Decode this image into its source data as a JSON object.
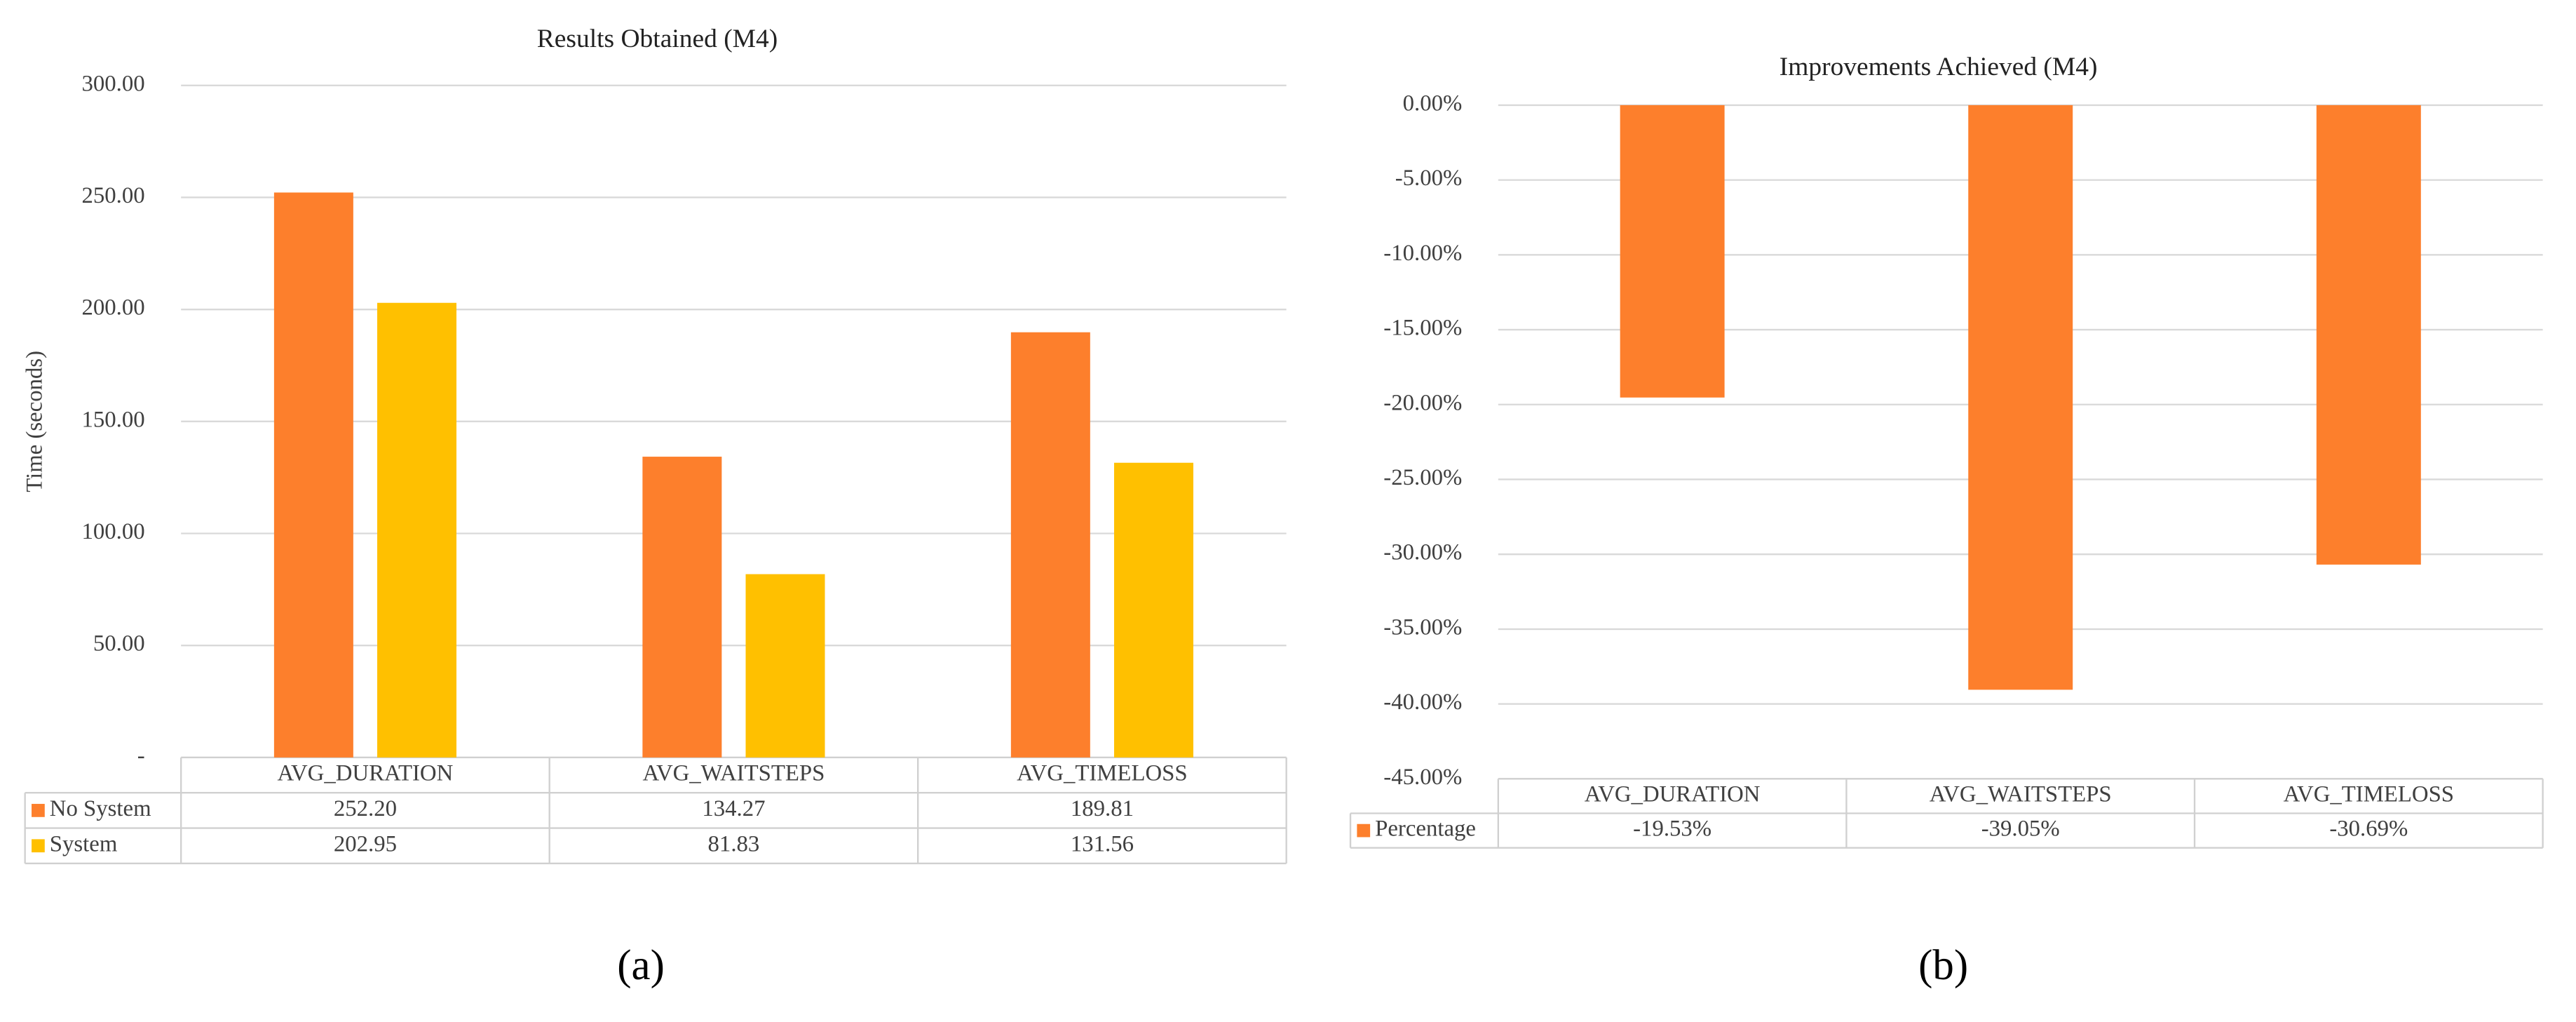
{
  "chart_data": [
    {
      "type": "bar",
      "title": "Results Obtained (M4)",
      "y_label": "Time (seconds)",
      "caption": "(a)",
      "categories": [
        "AVG_DURATION",
        "AVG_WAITSTEPS",
        "AVG_TIMELOSS"
      ],
      "series": [
        {
          "name": "No System",
          "color": "#fd7f2c",
          "values": [
            252.2,
            134.27,
            189.81
          ],
          "value_labels": [
            "252.20",
            "134.27",
            "189.81"
          ]
        },
        {
          "name": "System",
          "color": "#ffc000",
          "values": [
            202.95,
            81.83,
            131.56
          ],
          "value_labels": [
            "202.95",
            "81.83",
            "131.56"
          ]
        }
      ],
      "ylim": [
        0,
        300
      ],
      "yticks": [
        {
          "value": 0,
          "label": "-"
        },
        {
          "value": 50,
          "label": "50.00"
        },
        {
          "value": 100,
          "label": "100.00"
        },
        {
          "value": 150,
          "label": "150.00"
        },
        {
          "value": 200,
          "label": "200.00"
        },
        {
          "value": 250,
          "label": "250.00"
        },
        {
          "value": 300,
          "label": "300.00"
        }
      ],
      "grid": true
    },
    {
      "type": "bar",
      "title": "Improvements Achieved (M4)",
      "caption": "(b)",
      "categories": [
        "AVG_DURATION",
        "AVG_WAITSTEPS",
        "AVG_TIMELOSS"
      ],
      "series": [
        {
          "name": "Percentage",
          "color": "#fd7f2c",
          "values": [
            -19.53,
            -39.05,
            -30.69
          ],
          "value_labels": [
            "-19.53%",
            "-39.05%",
            "-30.69%"
          ]
        }
      ],
      "ylim": [
        -45,
        0
      ],
      "yticks": [
        {
          "value": 0,
          "label": "0.00%"
        },
        {
          "value": -5,
          "label": "-5.00%"
        },
        {
          "value": -10,
          "label": "-10.00%"
        },
        {
          "value": -15,
          "label": "-15.00%"
        },
        {
          "value": -20,
          "label": "-20.00%"
        },
        {
          "value": -25,
          "label": "-25.00%"
        },
        {
          "value": -30,
          "label": "-30.00%"
        },
        {
          "value": -35,
          "label": "-35.00%"
        },
        {
          "value": -40,
          "label": "-40.00%"
        },
        {
          "value": -45,
          "label": "-45.00%"
        }
      ],
      "grid": true
    }
  ]
}
